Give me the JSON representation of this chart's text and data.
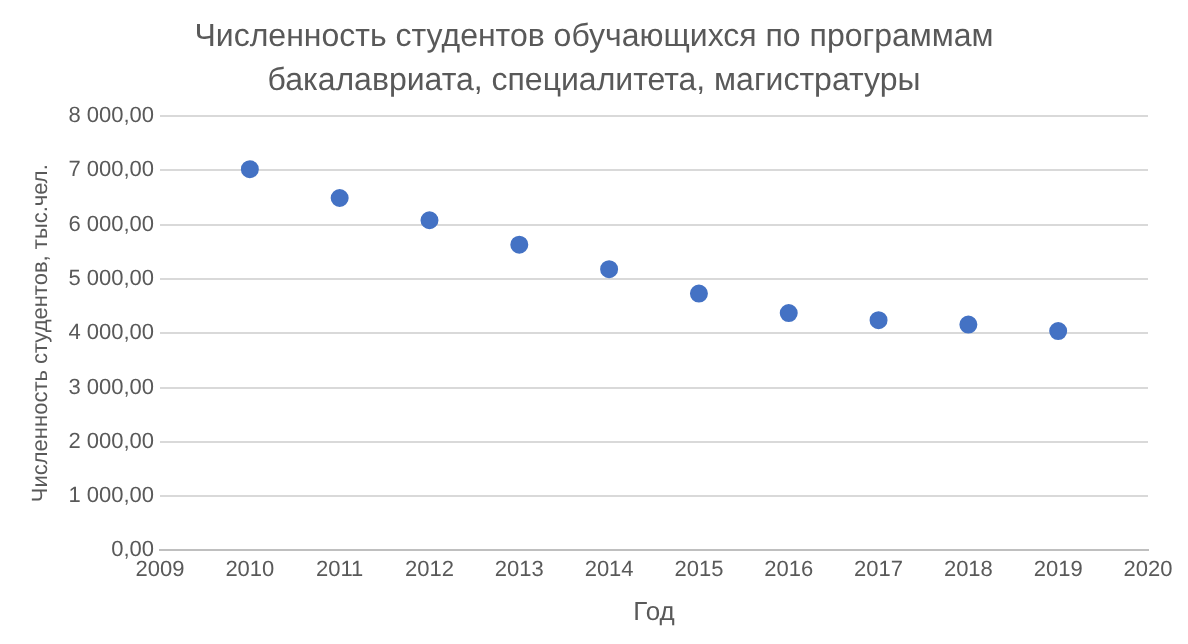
{
  "chart_data": {
    "type": "scatter",
    "title": "Численность студентов обучающихся по программам бакалавриата, специалитета, магистратуры",
    "xlabel": "Год",
    "ylabel": "Численность студентов, тыс.чел.",
    "x": [
      2010,
      2011,
      2012,
      2013,
      2014,
      2015,
      2016,
      2017,
      2018,
      2019
    ],
    "series": [
      {
        "color": "#4472c4",
        "values": [
          7020,
          6490,
          6080,
          5630,
          5180,
          4730,
          4370,
          4240,
          4160,
          4040
        ]
      }
    ],
    "xlim": [
      2009,
      2020
    ],
    "xticks": [
      2009,
      2010,
      2011,
      2012,
      2013,
      2014,
      2015,
      2016,
      2017,
      2018,
      2019,
      2020
    ],
    "ylim": [
      0,
      8000
    ],
    "yticks": [
      {
        "value": 0,
        "label": "0,00"
      },
      {
        "value": 1000,
        "label": "1 000,00"
      },
      {
        "value": 2000,
        "label": "2 000,00"
      },
      {
        "value": 3000,
        "label": "3 000,00"
      },
      {
        "value": 4000,
        "label": "4 000,00"
      },
      {
        "value": 5000,
        "label": "5 000,00"
      },
      {
        "value": 6000,
        "label": "6 000,00"
      },
      {
        "value": 7000,
        "label": "7 000,00"
      },
      {
        "value": 8000,
        "label": "8 000,00"
      }
    ],
    "grid": "y",
    "marker": "circle",
    "legend": false
  }
}
